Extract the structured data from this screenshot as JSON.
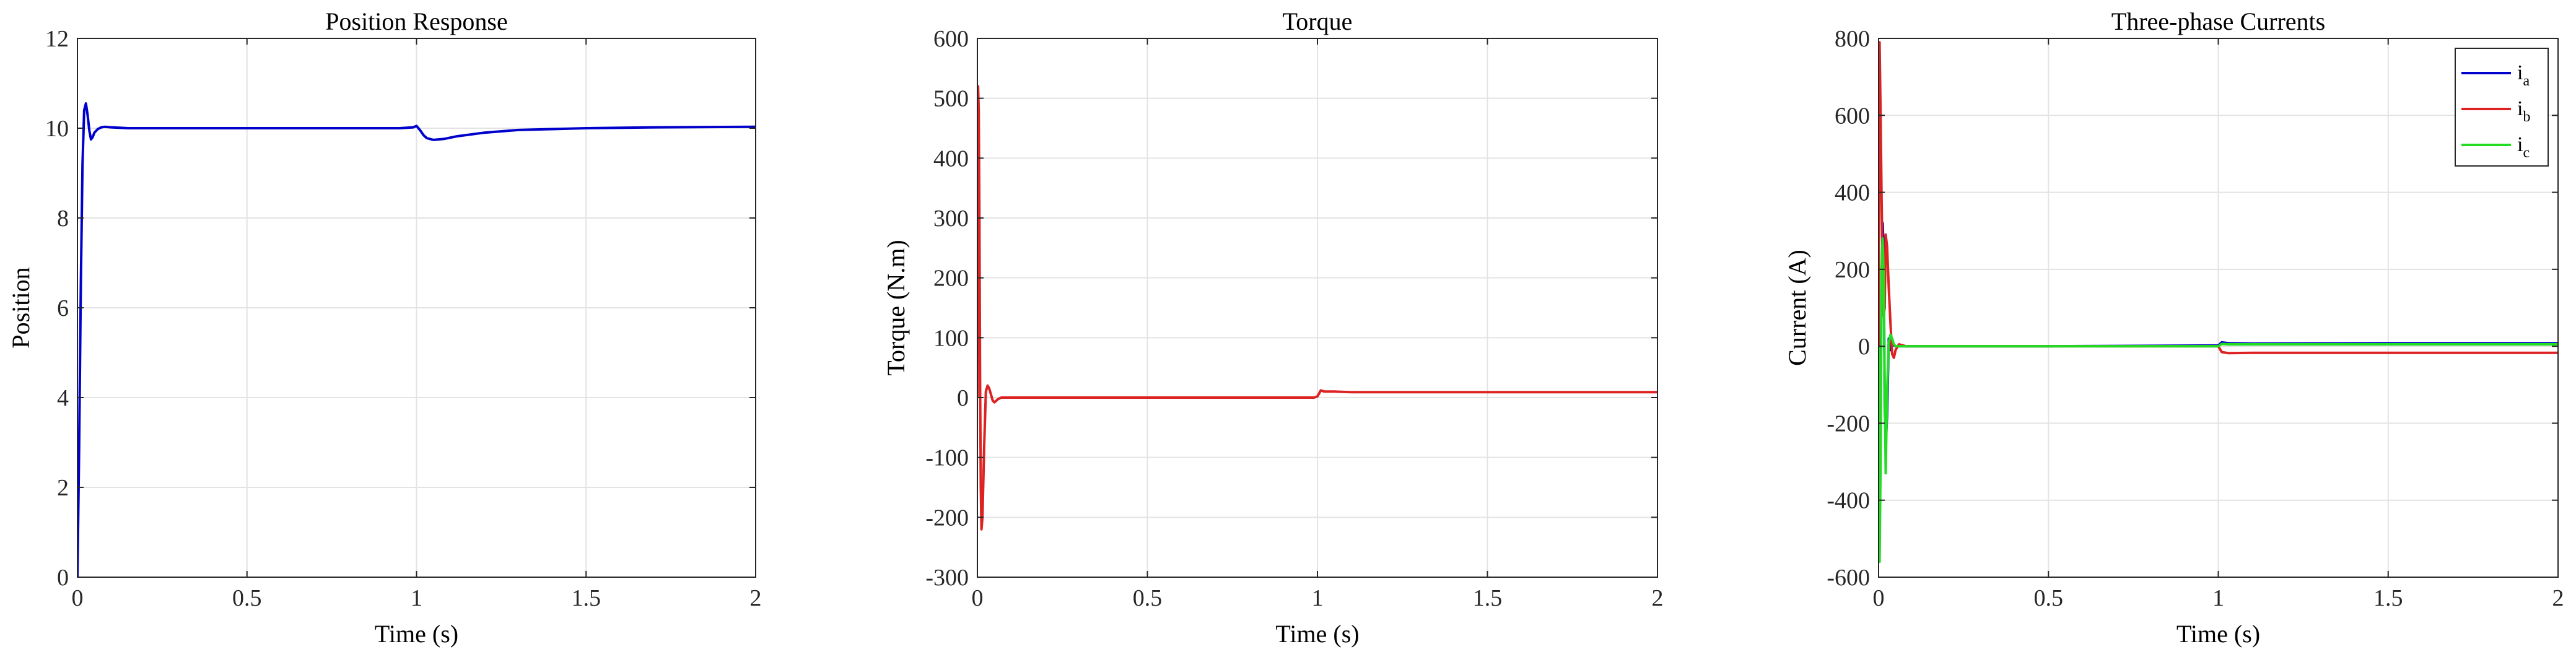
{
  "chart_data": [
    {
      "type": "line",
      "title": "Position Response",
      "xlabel": "Time (s)",
      "ylabel": "Position",
      "xlim": [
        0,
        2
      ],
      "ylim": [
        0,
        12
      ],
      "xticks": [
        0,
        0.5,
        1,
        1.5,
        2
      ],
      "xtick_labels": [
        "0",
        "0.5",
        "1",
        "1.5",
        "2"
      ],
      "yticks": [
        0,
        2,
        4,
        6,
        8,
        10,
        12
      ],
      "ytick_labels": [
        "0",
        "2",
        "4",
        "6",
        "8",
        "10",
        "12"
      ],
      "grid": true,
      "series": [
        {
          "color": "#0000cc",
          "x": [
            0,
            0.005,
            0.01,
            0.015,
            0.02,
            0.025,
            0.03,
            0.035,
            0.04,
            0.045,
            0.05,
            0.06,
            0.07,
            0.08,
            0.1,
            0.15,
            0.2,
            0.3,
            0.5,
            0.8,
            0.95,
            0.99,
            1.0,
            1.01,
            1.02,
            1.03,
            1.05,
            1.08,
            1.12,
            1.2,
            1.3,
            1.4,
            1.5,
            1.7,
            2.0
          ],
          "y": [
            0,
            2.8,
            6.5,
            9.2,
            10.4,
            10.55,
            10.3,
            9.95,
            9.75,
            9.8,
            9.9,
            9.98,
            10.02,
            10.03,
            10.02,
            10.0,
            10.0,
            10.0,
            10.0,
            10.0,
            10.0,
            10.02,
            10.05,
            9.96,
            9.85,
            9.78,
            9.74,
            9.76,
            9.82,
            9.9,
            9.96,
            9.98,
            10.0,
            10.02,
            10.03
          ]
        }
      ]
    },
    {
      "type": "line",
      "title": "Torque",
      "xlabel": "Time (s)",
      "ylabel": "Torque (N.m)",
      "xlim": [
        0,
        2
      ],
      "ylim": [
        -300,
        600
      ],
      "xticks": [
        0,
        0.5,
        1,
        1.5,
        2
      ],
      "xtick_labels": [
        "0",
        "0.5",
        "1",
        "1.5",
        "2"
      ],
      "yticks": [
        -300,
        -200,
        -100,
        0,
        100,
        200,
        300,
        400,
        500,
        600
      ],
      "ytick_labels": [
        "-300",
        "-200",
        "-100",
        "0",
        "100",
        "200",
        "300",
        "400",
        "500",
        "600"
      ],
      "grid": true,
      "series": [
        {
          "color": "#dd2222",
          "x": [
            0,
            0.002,
            0.004,
            0.006,
            0.008,
            0.01,
            0.012,
            0.015,
            0.02,
            0.025,
            0.03,
            0.035,
            0.04,
            0.045,
            0.05,
            0.06,
            0.07,
            0.08,
            0.1,
            0.2,
            0.5,
            0.8,
            0.99,
            1.0,
            1.01,
            1.02,
            1.05,
            1.1,
            1.5,
            2.0
          ],
          "y": [
            0,
            520,
            480,
            300,
            20,
            -150,
            -220,
            -200,
            -80,
            10,
            20,
            15,
            5,
            -5,
            -8,
            -3,
            0,
            0,
            0,
            0,
            0,
            0,
            0,
            2,
            12,
            10,
            10,
            9,
            9,
            9
          ]
        }
      ]
    },
    {
      "type": "line",
      "title": "Three-phase Currents",
      "xlabel": "Time (s)",
      "ylabel": "Current (A)",
      "xlim": [
        0,
        2
      ],
      "ylim": [
        -600,
        800
      ],
      "xticks": [
        0,
        0.5,
        1,
        1.5,
        2
      ],
      "xtick_labels": [
        "0",
        "0.5",
        "1",
        "1.5",
        "2"
      ],
      "yticks": [
        -600,
        -400,
        -200,
        0,
        200,
        400,
        600,
        800
      ],
      "ytick_labels": [
        "-600",
        "-400",
        "-200",
        "0",
        "200",
        "400",
        "600",
        "800"
      ],
      "grid": true,
      "legend": {
        "placement": "top-right",
        "entries": [
          {
            "base": "i",
            "sub": "a",
            "color": "#0000cc"
          },
          {
            "base": "i",
            "sub": "b",
            "color": "#dd2222"
          },
          {
            "base": "i",
            "sub": "c",
            "color": "#22dd22"
          }
        ]
      },
      "series": [
        {
          "color": "#0000cc",
          "x": [
            0,
            0.003,
            0.006,
            0.009,
            0.012,
            0.015,
            0.018,
            0.021,
            0.025,
            0.03,
            0.035,
            0.04,
            0.05,
            0.06,
            0.08,
            0.1,
            0.5,
            1.0,
            1.01,
            1.03,
            1.1,
            1.5,
            2.0
          ],
          "y": [
            0,
            -380,
            -100,
            150,
            320,
            250,
            -150,
            -260,
            -180,
            20,
            -10,
            5,
            0,
            0,
            0,
            0,
            0,
            2,
            10,
            8,
            7,
            8,
            8
          ]
        },
        {
          "color": "#dd2222",
          "x": [
            0,
            0.003,
            0.006,
            0.009,
            0.012,
            0.015,
            0.018,
            0.021,
            0.025,
            0.03,
            0.035,
            0.04,
            0.045,
            0.05,
            0.06,
            0.08,
            0.1,
            0.5,
            1.0,
            1.01,
            1.03,
            1.1,
            1.5,
            2.0
          ],
          "y": [
            0,
            790,
            600,
            380,
            200,
            80,
            100,
            290,
            260,
            150,
            60,
            -20,
            -30,
            -10,
            5,
            0,
            0,
            0,
            0,
            -15,
            -18,
            -17,
            -17,
            -17
          ]
        },
        {
          "color": "#22dd22",
          "x": [
            0,
            0.003,
            0.006,
            0.009,
            0.012,
            0.015,
            0.018,
            0.021,
            0.025,
            0.03,
            0.035,
            0.04,
            0.045,
            0.05,
            0.06,
            0.08,
            0.1,
            0.5,
            1.0,
            1.01,
            1.03,
            1.1,
            1.5,
            2.0
          ],
          "y": [
            0,
            -560,
            -300,
            200,
            280,
            180,
            -100,
            -330,
            -120,
            10,
            30,
            20,
            5,
            0,
            0,
            0,
            0,
            0,
            0,
            6,
            5,
            5,
            5,
            5
          ]
        }
      ]
    }
  ]
}
